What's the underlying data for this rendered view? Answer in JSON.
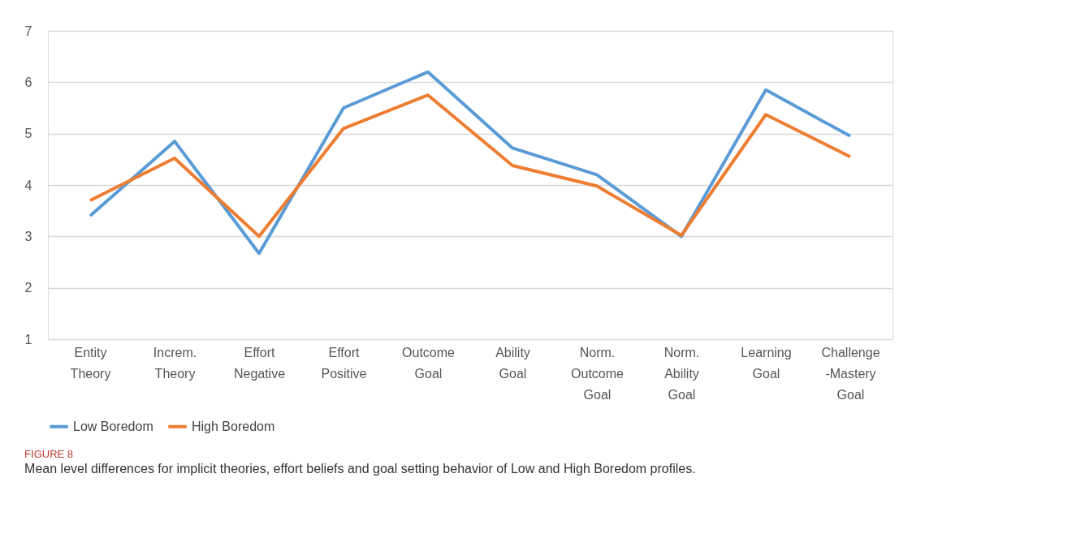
{
  "chart_data": {
    "type": "line",
    "title": "FIGURE 8",
    "subtitle": "Mean level differences for implicit theories, effort beliefs and goal setting behavior of Low and High Boredom profiles.",
    "categories": [
      "Entity\nTheory",
      "Increm.\nTheory",
      "Effort\nNegative",
      "Effort\nPositive",
      "Outcome\nGoal",
      "Ability\nGoal",
      "Norm.\nOutcome\nGoal",
      "Norm.\nAbility\nGoal",
      "Learning\nGoal",
      "Challenge\n-Mastery\nGoal"
    ],
    "series": [
      {
        "name": "Low Boredom",
        "color": "#5b9bd5",
        "values": [
          3.4,
          4.85,
          2.67,
          5.5,
          6.2,
          4.72,
          4.2,
          3.0,
          5.85,
          4.95
        ]
      },
      {
        "name": "High Boredom",
        "color": "#ed7d31",
        "values": [
          3.7,
          4.52,
          3.0,
          5.1,
          5.75,
          4.38,
          3.98,
          3.02,
          5.37,
          4.55
        ]
      }
    ],
    "ylim": [
      1,
      7
    ],
    "yticks": [
      1,
      2,
      3,
      4,
      5,
      6,
      7
    ],
    "grid": "y",
    "legend": "bottom",
    "marker": "none",
    "line_style": "solid"
  }
}
